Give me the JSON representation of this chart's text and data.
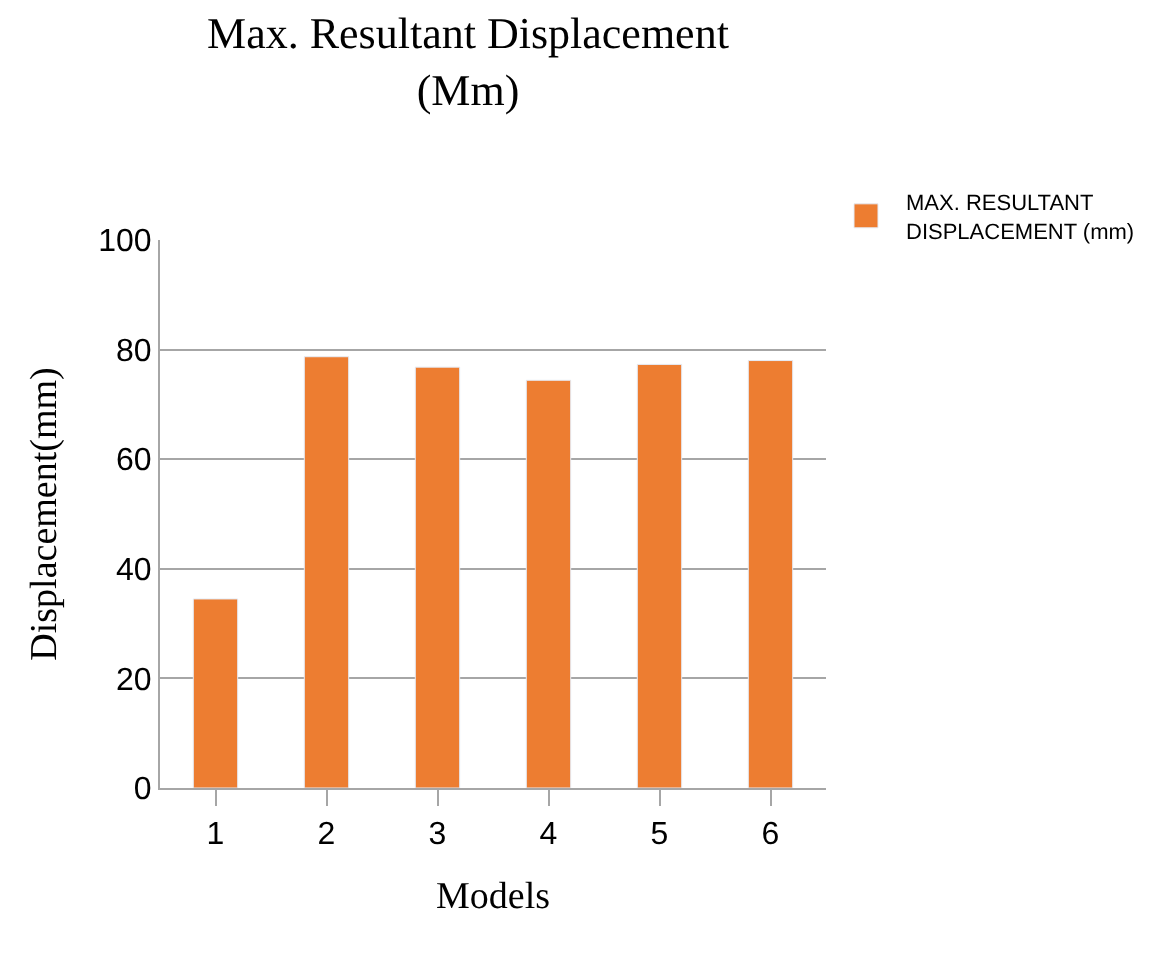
{
  "chart_data": {
    "type": "bar",
    "title": "Max. Resultant Displacement (Mm)",
    "xlabel": "Models",
    "ylabel": "Displacement(mm)",
    "categories": [
      "1",
      "2",
      "3",
      "4",
      "5",
      "6"
    ],
    "series": [
      {
        "name": "MAX. RESULTANT DISPLACEMENT (mm)",
        "color": "#ed7d31",
        "values": [
          34.5,
          78.7,
          76.8,
          74.4,
          77.3,
          78.0
        ]
      }
    ],
    "ylim": [
      0,
      100
    ],
    "yticks": [
      0,
      20,
      40,
      60,
      80,
      100
    ],
    "grid": "y",
    "legend": "top right"
  }
}
